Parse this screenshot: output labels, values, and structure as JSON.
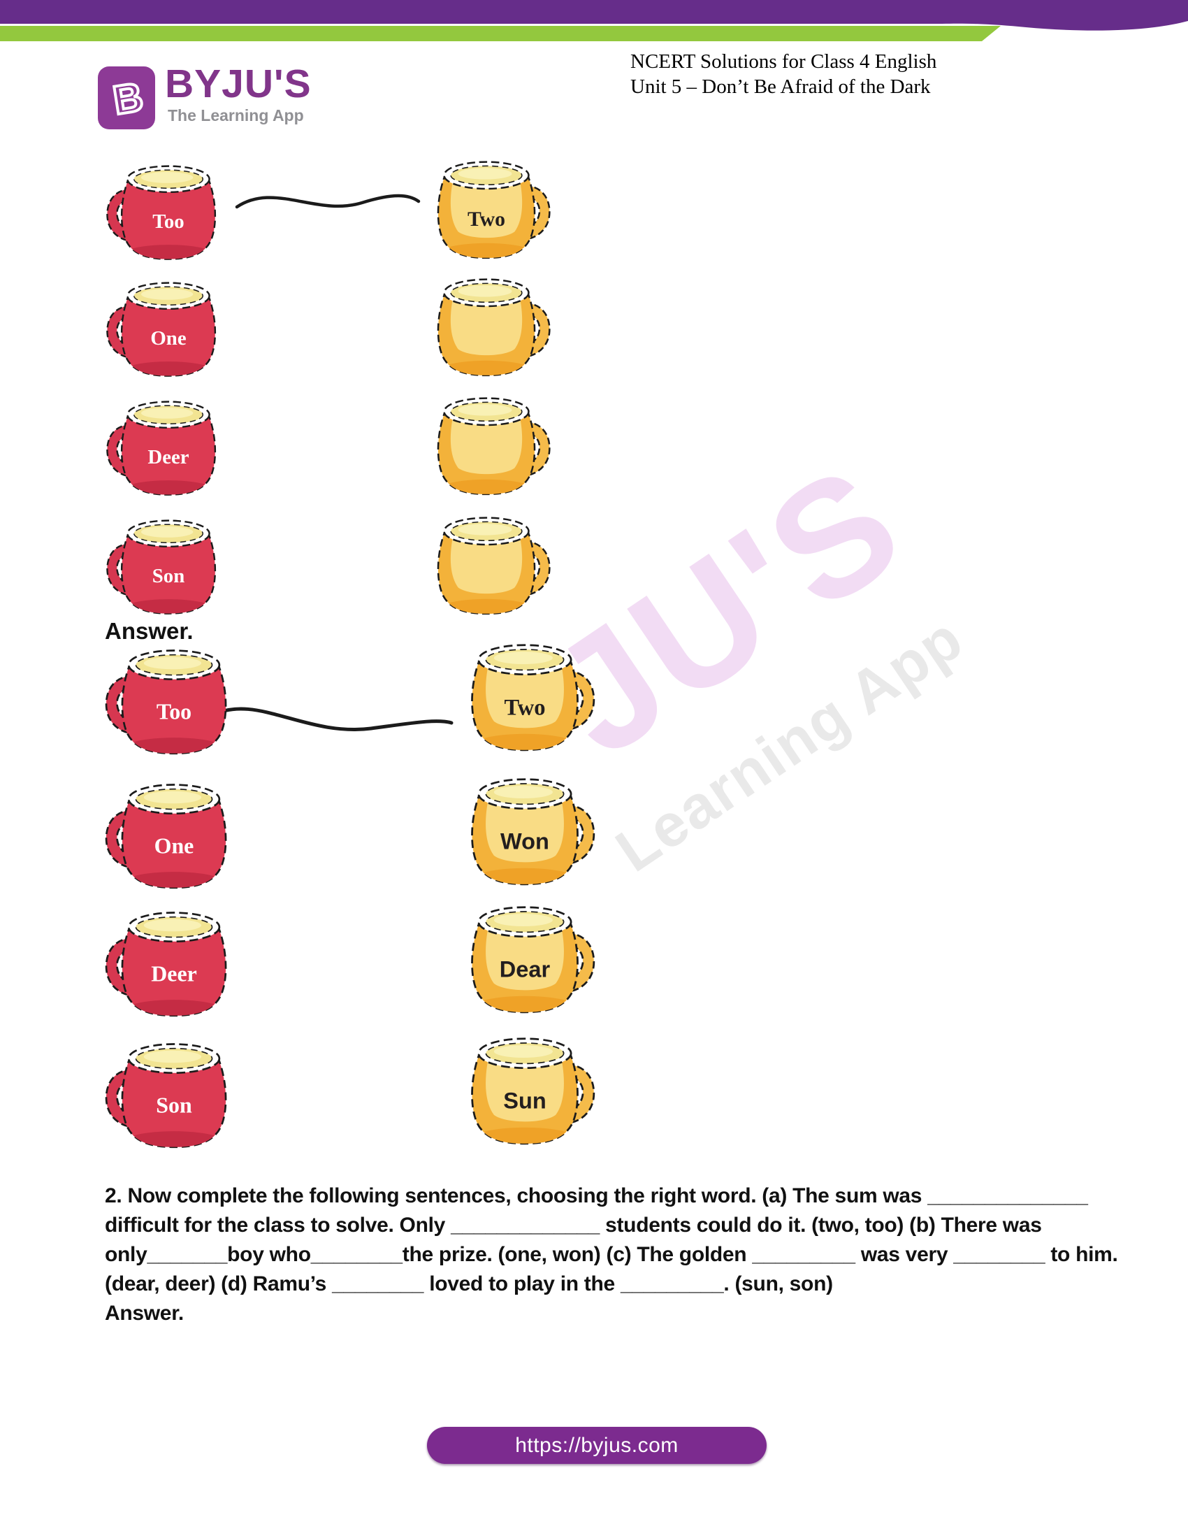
{
  "header": {
    "brand": "BYJU'S",
    "tagline": "The Learning App",
    "logo_letter": "B",
    "title_line1": "NCERT Solutions for Class 4 English",
    "title_line2": "Unit 5 – Don’t Be Afraid of the Dark"
  },
  "colors": {
    "header_purple": "#662D8A",
    "header_green": "#93C83E",
    "brand_purple": "#81358A",
    "red_mug": "#DC3A52",
    "yellow_mug": "#F3B23A",
    "footer_purple": "#7C2B8F",
    "watermark_pink": "#F2DCF4",
    "watermark_gray": "#E9E9E9"
  },
  "matching_question": {
    "left_column": [
      {
        "label": "Too",
        "color": "red",
        "label_font": "serif"
      },
      {
        "label": "One",
        "color": "red",
        "label_font": "serif"
      },
      {
        "label": "Deer",
        "color": "red",
        "label_font": "serif"
      },
      {
        "label": "Son",
        "color": "red",
        "label_font": "serif"
      }
    ],
    "right_column": [
      {
        "label": "Two",
        "color": "yellow",
        "label_font": "serif"
      },
      {
        "label": "",
        "color": "yellow",
        "label_font": "serif"
      },
      {
        "label": "",
        "color": "yellow",
        "label_font": "serif"
      },
      {
        "label": "",
        "color": "yellow",
        "label_font": "serif"
      }
    ],
    "drawn_match": "Too – Two"
  },
  "answer_section": {
    "heading": "Answer.",
    "left_column": [
      {
        "label": "Too",
        "color": "red",
        "label_font": "serif"
      },
      {
        "label": "One",
        "color": "red",
        "label_font": "serif"
      },
      {
        "label": "Deer",
        "color": "red",
        "label_font": "serif"
      },
      {
        "label": "Son",
        "color": "red",
        "label_font": "serif"
      }
    ],
    "right_column": [
      {
        "label": "Two",
        "color": "yellow",
        "label_font": "serif"
      },
      {
        "label": "Won",
        "color": "yellow",
        "label_font": "sans"
      },
      {
        "label": "Dear",
        "color": "yellow",
        "label_font": "sans"
      },
      {
        "label": "Sun",
        "color": "yellow",
        "label_font": "sans"
      }
    ],
    "drawn_match": "Too – Two"
  },
  "question2": {
    "lines": [
      "2. Now complete the following sentences, choosing the right word. (a) The sum was ______________",
      "difficult for the class to solve. Only _____________ students could do it. (two, too) (b) There was",
      "only_______boy who________the prize. (one, won) (c) The golden _________ was very ________ to him.",
      "(dear, deer) (d) Ramu’s ________ loved to play in the _________. (sun, son)"
    ],
    "answer_heading": "Answer."
  },
  "watermark": {
    "primary": "JU'S",
    "secondary": "Learning App"
  },
  "footer": {
    "link": "https://byjus.com"
  }
}
